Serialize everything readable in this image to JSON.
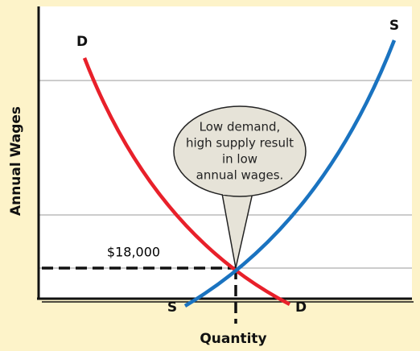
{
  "axes": {
    "y_label": "Annual Wages",
    "x_label": "Quantity"
  },
  "curves": {
    "demand_label": "D",
    "supply_label": "S"
  },
  "equilibrium_label": "$18,000",
  "callout": {
    "lines": [
      "Low demand,",
      "high supply result",
      "in low",
      "annual wages."
    ]
  }
}
